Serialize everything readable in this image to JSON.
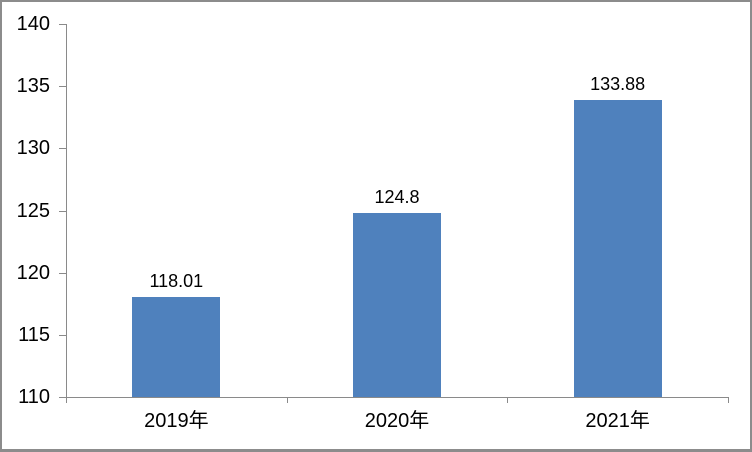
{
  "chart_data": {
    "type": "bar",
    "categories": [
      "2019年",
      "2020年",
      "2021年"
    ],
    "values": [
      118.01,
      124.8,
      133.88
    ],
    "data_labels": [
      "118.01",
      "124.8",
      "133.88"
    ],
    "ylim": [
      110,
      140
    ],
    "ytick_step": 5,
    "yticks": [
      110,
      115,
      120,
      125,
      130,
      135,
      140
    ],
    "grid": false,
    "legend": "none",
    "colors": {
      "bar": "#4F81BD",
      "axis": "#8A8A8A",
      "text": "#000000",
      "frame_border": "#8C8C8C",
      "background": "#FFFFFF"
    }
  }
}
